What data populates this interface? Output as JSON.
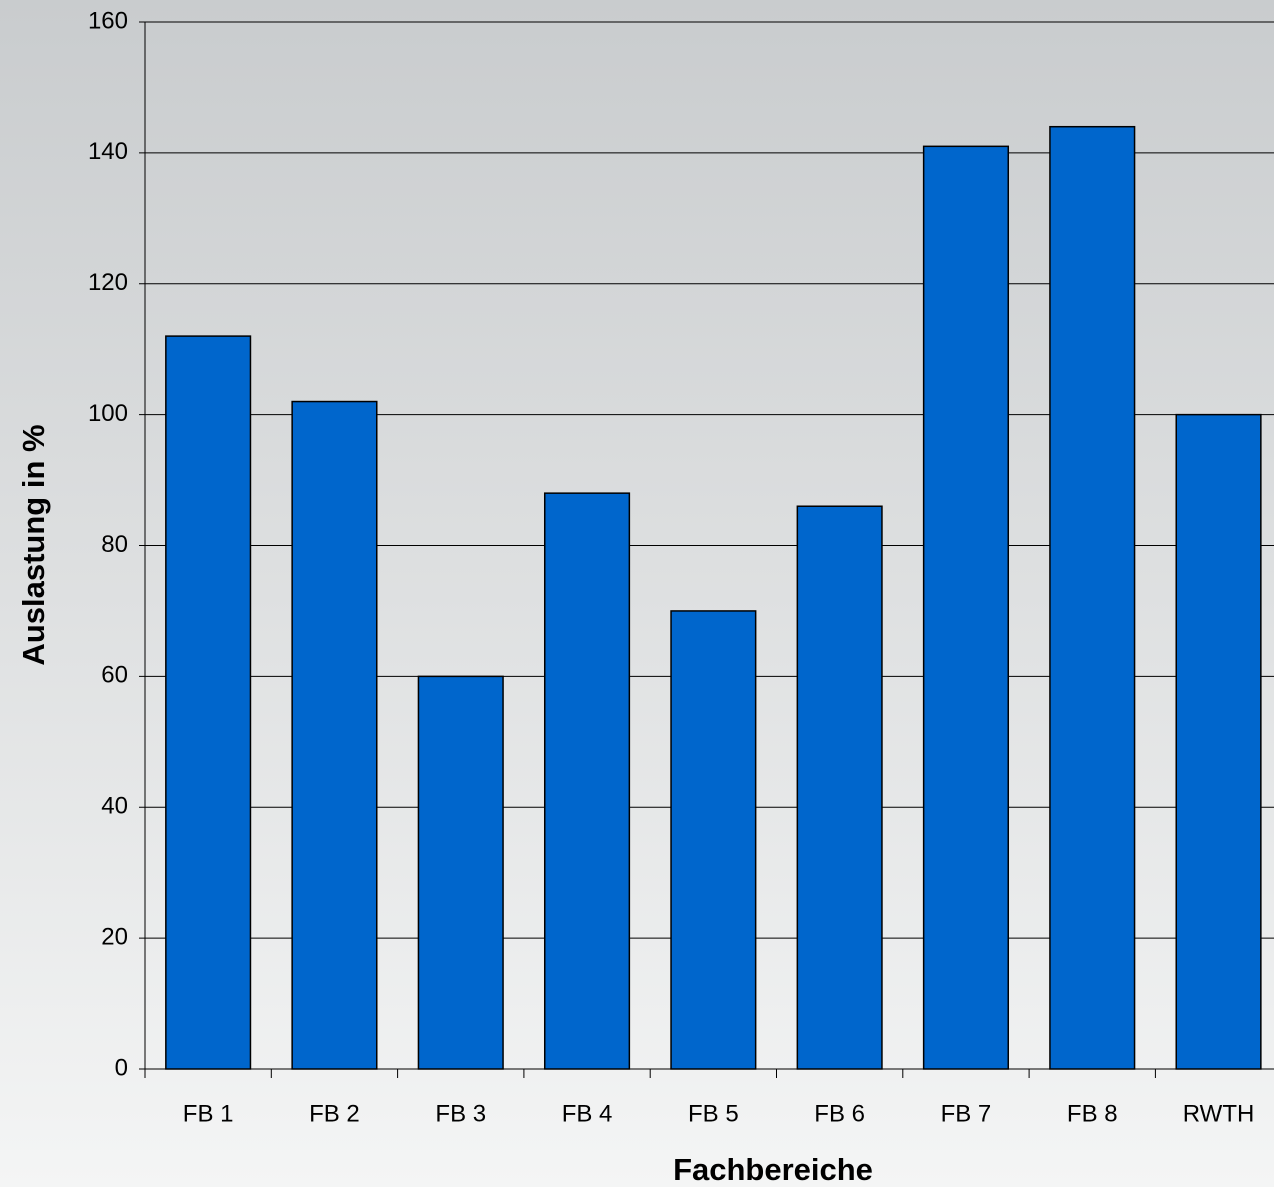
{
  "chart_data": {
    "type": "bar",
    "categories": [
      "FB 1",
      "FB 2",
      "FB 3",
      "FB 4",
      "FB 5",
      "FB 6",
      "FB 7",
      "FB 8",
      "RWTH"
    ],
    "values": [
      112,
      102,
      60,
      88,
      70,
      86,
      141,
      144,
      100
    ],
    "color": "#0066cc",
    "xlabel": "Fachbereiche",
    "ylabel": "Auslastung in %",
    "ylim": [
      0,
      160
    ],
    "yticks": [
      0,
      20,
      40,
      60,
      80,
      100,
      120,
      140,
      160
    ],
    "grid": true
  }
}
